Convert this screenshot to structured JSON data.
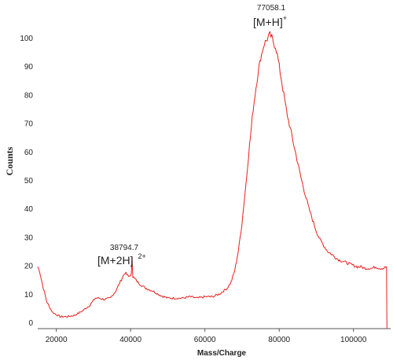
{
  "chart_data": {
    "type": "line",
    "title": "",
    "xlabel": "Mass/Charge",
    "ylabel": "Counts",
    "xlim": [
      15000,
      110000
    ],
    "ylim": [
      0,
      104
    ],
    "x_ticks": [
      "20000",
      "40000",
      "60000",
      "80000",
      "100000"
    ],
    "y_ticks": [
      "0",
      "10",
      "20",
      "30",
      "40",
      "50",
      "60",
      "70",
      "80",
      "90",
      "100"
    ],
    "grid": false,
    "legend": "none",
    "line_color": "#e8201c",
    "series": [
      {
        "x": [
          15000,
          15500,
          16500,
          17500,
          19000,
          21000,
          23000,
          25000,
          27000,
          29000,
          30500,
          31500,
          33000,
          34500,
          36000,
          37500,
          38500,
          39500,
          40200,
          40400,
          40600,
          41000,
          42000,
          44000,
          46000,
          48000,
          50000,
          52000,
          54000,
          56000,
          58000,
          60000,
          62000,
          64000,
          66000,
          67000,
          68000,
          69000,
          70000,
          71000,
          72000,
          73000,
          74000,
          75000,
          76000,
          77000,
          77500,
          78000,
          78500,
          79000,
          79500,
          80000,
          81000,
          82000,
          83000,
          84000,
          85000,
          86000,
          87000,
          88000,
          89000,
          90000,
          91000,
          92000,
          93000,
          94000,
          95000,
          96000,
          97000,
          98000,
          99000,
          100000,
          101000,
          102000,
          103000,
          104000,
          105000,
          106000,
          107000,
          108000,
          108900,
          109000
        ],
        "y": [
          19.5,
          18,
          12,
          7,
          3.5,
          2,
          2,
          2.5,
          4,
          6,
          8.5,
          8.5,
          8,
          8.5,
          11,
          15,
          17.5,
          16,
          17,
          23,
          16,
          15.5,
          14,
          12,
          11,
          9.5,
          8.5,
          8.5,
          8.5,
          9,
          8.5,
          9,
          9,
          10,
          12,
          14,
          18,
          25,
          35,
          48,
          62,
          75,
          85,
          93,
          98,
          100,
          101,
          100,
          98,
          97,
          94,
          90,
          82,
          74,
          68,
          62,
          56,
          50,
          45,
          40,
          36,
          32,
          29,
          27,
          25,
          24,
          23,
          22,
          21.5,
          21,
          20.5,
          20,
          19.5,
          19.5,
          19,
          19,
          19,
          19.5,
          19,
          19,
          19.5,
          0
        ]
      }
    ],
    "annotations": [
      {
        "value": "77058.1",
        "ion": "[M+H]",
        "charge": "+"
      },
      {
        "value": "38794.7",
        "ion": "[M+2H]",
        "charge": "2+"
      }
    ]
  }
}
